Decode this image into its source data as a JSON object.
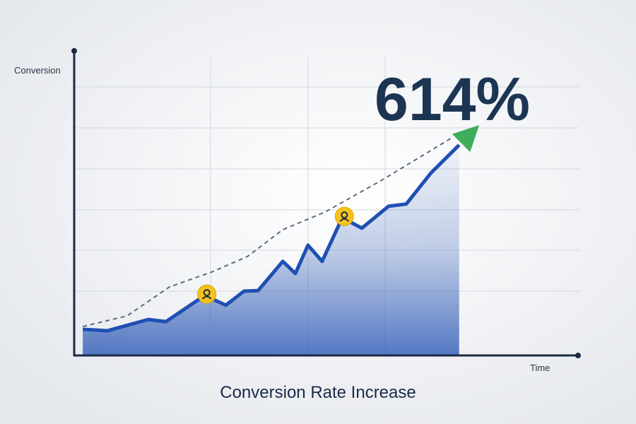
{
  "chart_data": {
    "type": "line",
    "title": "Conversion Rate Increase",
    "y_label": "Conversion",
    "x_label": "Time",
    "annotation": "614%",
    "xlim": [
      0,
      100
    ],
    "ylim": [
      0,
      100
    ],
    "series": [
      {
        "color": "#1f4fb3",
        "x": [
          1.7,
          6.6,
          14.7,
          18.2,
          25.9,
          30.1,
          33.7,
          36.5,
          41.4,
          43.9,
          46.4,
          49.2,
          53.2,
          57.1,
          62.4,
          65.9,
          70.8,
          76.4
        ],
        "values": [
          8.6,
          8.1,
          11.8,
          11.1,
          19.7,
          16.5,
          21.1,
          21.3,
          30.9,
          26.9,
          36.2,
          30.9,
          45.2,
          41.8,
          49.0,
          49.7,
          59.9,
          69.1
        ]
      },
      {
        "color": "#5b6b82",
        "x": [
          1.7,
          10.5,
          18.9,
          27.3,
          34.4,
          41.4,
          49.8,
          61.0,
          75.0
        ],
        "values": [
          9.5,
          13.0,
          22.5,
          27.4,
          32.5,
          41.3,
          47.1,
          57.5,
          71.5
        ]
      }
    ]
  }
}
